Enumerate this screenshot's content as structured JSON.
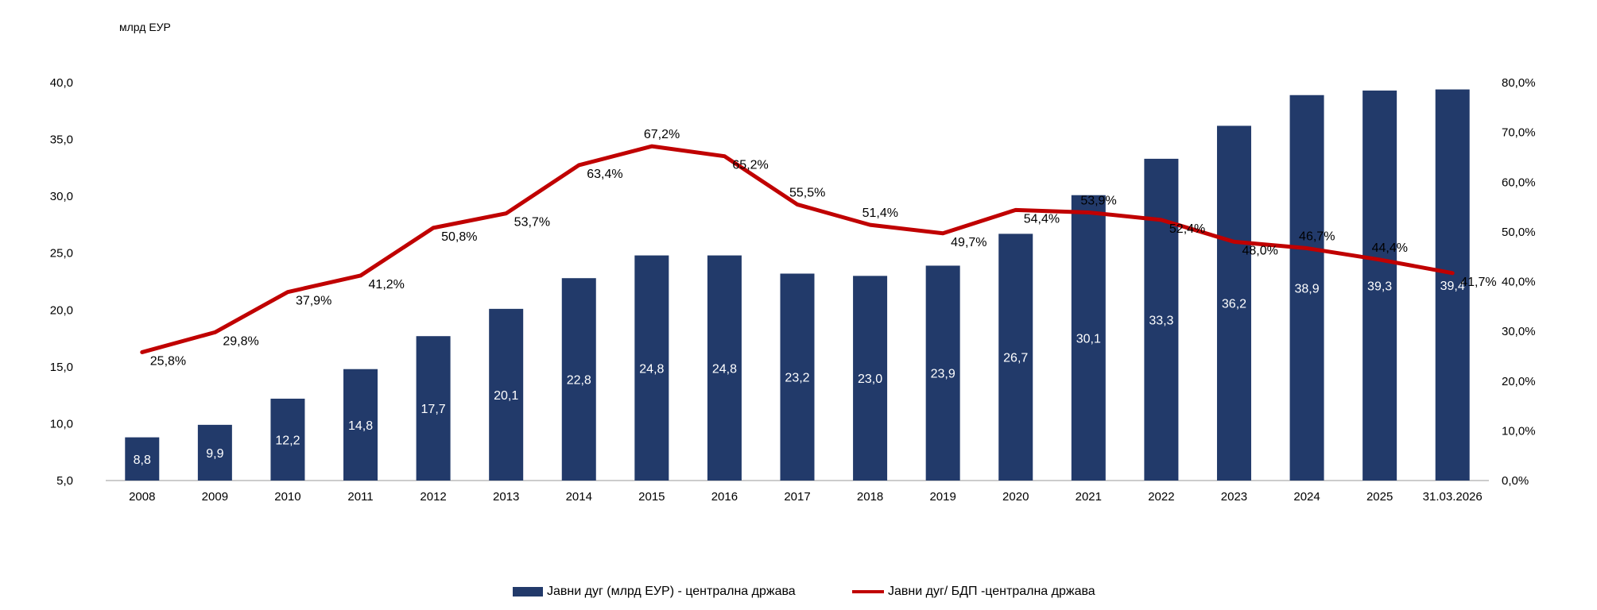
{
  "chart_data": {
    "type": "bar",
    "unit_label": "млрд ЕУР",
    "categories": [
      "2008",
      "2009",
      "2010",
      "2011",
      "2012",
      "2013",
      "2014",
      "2015",
      "2016",
      "2017",
      "2018",
      "2019",
      "2020",
      "2021",
      "2022",
      "2023",
      "2024",
      "2025",
      "31.03.2026"
    ],
    "series": [
      {
        "name": "Јавни дуг (млрд ЕУР) - централна држава",
        "type": "bar",
        "axis": "left",
        "color": "#223A6A",
        "values": [
          8.8,
          9.9,
          12.2,
          14.8,
          17.7,
          20.1,
          22.8,
          24.8,
          24.8,
          23.2,
          23.0,
          23.9,
          26.7,
          30.1,
          33.3,
          36.2,
          38.9,
          39.3,
          39.4
        ],
        "labels": [
          "8,8",
          "9,9",
          "12,2",
          "14,8",
          "17,7",
          "20,1",
          "22,8",
          "24,8",
          "24,8",
          "23,2",
          "23,0",
          "23,9",
          "26,7",
          "30,1",
          "33,3",
          "36,2",
          "38,9",
          "39,3",
          "39,4"
        ]
      },
      {
        "name": "Јавни дуг/ БДП -централна држава",
        "type": "line",
        "axis": "right",
        "color": "#C00000",
        "values": [
          25.8,
          29.8,
          37.9,
          41.2,
          50.8,
          53.7,
          63.4,
          67.2,
          65.2,
          55.5,
          51.4,
          49.7,
          54.4,
          53.9,
          52.4,
          48.0,
          46.7,
          44.4,
          41.7
        ],
        "labels": [
          "25,8%",
          "29,8%",
          "37,9%",
          "41,2%",
          "50,8%",
          "53,7%",
          "63,4%",
          "67,2%",
          "65,2%",
          "55,5%",
          "51,4%",
          "49,7%",
          "54,4%",
          "53,9%",
          "52,4%",
          "48,0%",
          "46,7%",
          "44,4%",
          "41,7%"
        ]
      }
    ],
    "y_left": {
      "min": 5,
      "max": 40,
      "ticks": [
        "5,0",
        "10,0",
        "15,0",
        "20,0",
        "25,0",
        "30,0",
        "35,0",
        "40,0"
      ]
    },
    "y_right": {
      "min": 0,
      "max": 80,
      "ticks": [
        "0,0%",
        "10,0%",
        "20,0%",
        "30,0%",
        "40,0%",
        "50,0%",
        "60,0%",
        "70,0%",
        "80,0%"
      ]
    },
    "grid": false,
    "legend_position": "bottom"
  }
}
